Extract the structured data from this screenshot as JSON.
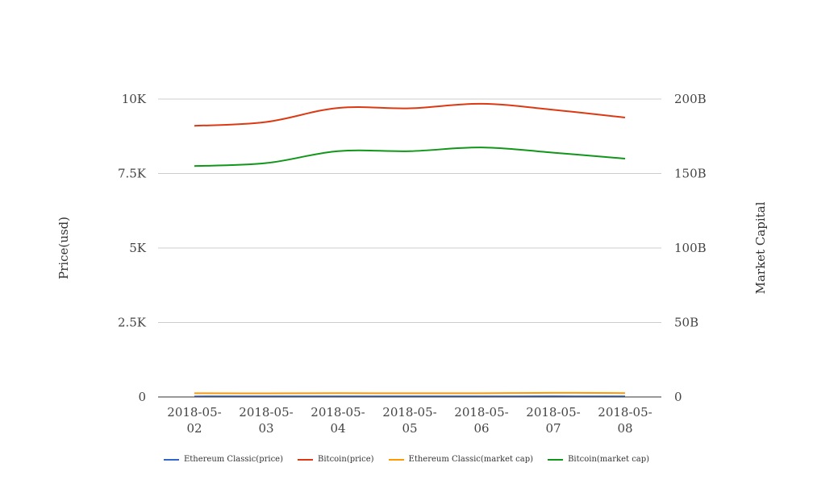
{
  "chart_data": {
    "type": "line",
    "title": "",
    "x": [
      "2018-05-02",
      "2018-05-03",
      "2018-05-04",
      "2018-05-05",
      "2018-05-06",
      "2018-05-07",
      "2018-05-08"
    ],
    "x_tick_lines": [
      [
        "2018-05-",
        "02"
      ],
      [
        "2018-05-",
        "03"
      ],
      [
        "2018-05-",
        "04"
      ],
      [
        "2018-05-",
        "05"
      ],
      [
        "2018-05-",
        "06"
      ],
      [
        "2018-05-",
        "07"
      ],
      [
        "2018-05-",
        "08"
      ]
    ],
    "ylabel": "Price(usd)",
    "y2label": "Market Capital",
    "ylim": [
      0,
      10000
    ],
    "y2lim": [
      0,
      200000000000
    ],
    "y_ticks": [
      0,
      2500,
      5000,
      7500,
      10000
    ],
    "y_tick_labels": [
      "0",
      "2.5K",
      "5K",
      "7.5K",
      "10K"
    ],
    "y2_ticks": [
      0,
      50000000000,
      100000000000,
      150000000000,
      200000000000
    ],
    "y2_tick_labels": [
      "0",
      "50B",
      "100B",
      "150B",
      "200B"
    ],
    "grid": true,
    "legend_position": "bottom",
    "series": [
      {
        "name": "Ethereum Classic(price)",
        "axis": "left",
        "color": "#3366cc",
        "values": [
          18.5,
          19.2,
          19.0,
          20.1,
          20.4,
          22.3,
          19.8
        ]
      },
      {
        "name": "Bitcoin(price)",
        "axis": "left",
        "color": "#dc3912",
        "values": [
          9100,
          9230,
          9700,
          9690,
          9840,
          9640,
          9380
        ]
      },
      {
        "name": "Ethereum Classic(market cap)",
        "axis": "right",
        "color": "#ff9900",
        "values": [
          2500000000,
          2450000000,
          2550000000,
          2500000000,
          2500000000,
          2800000000,
          2600000000
        ]
      },
      {
        "name": "Bitcoin(market cap)",
        "axis": "right",
        "color": "#109618",
        "values": [
          155000000000,
          157000000000,
          165000000000,
          165000000000,
          167500000000,
          164000000000,
          160000000000
        ]
      }
    ]
  }
}
